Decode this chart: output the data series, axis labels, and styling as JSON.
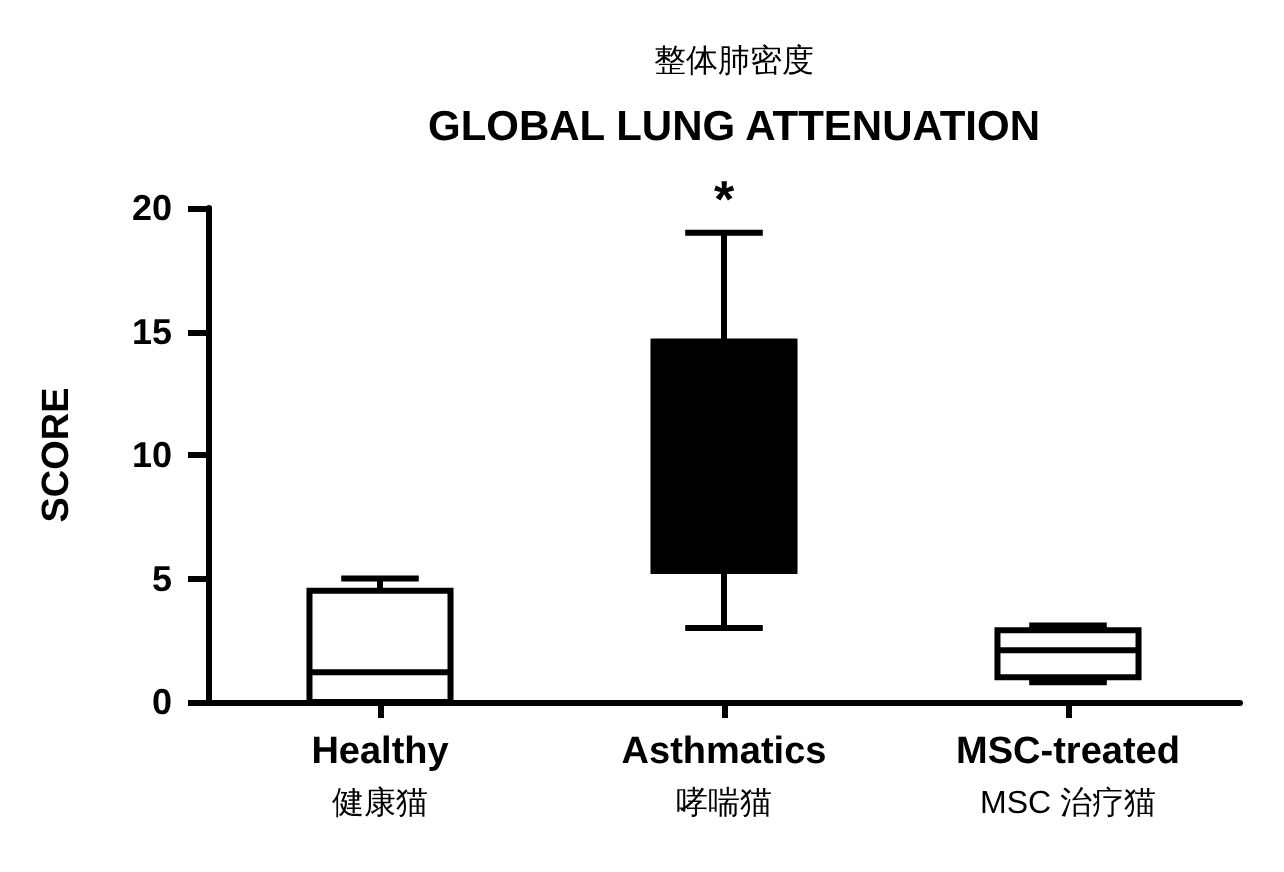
{
  "chart_data": {
    "type": "box",
    "title": "GLOBAL LUNG ATTENUATION",
    "subtitle": "整体肺密度",
    "ylabel": "SCORE",
    "categories": [
      "Healthy\n健康猫",
      "Asthmatics\n哮喘猫",
      "MSC-treated\nMSC 治疗猫"
    ],
    "boxes": [
      {
        "low": 0,
        "q1": 0,
        "median": 1.2,
        "q3": 4.5,
        "high": 5
      },
      {
        "low": 3,
        "q1": 5.3,
        "median": null,
        "q3": 14.6,
        "high": 19
      },
      {
        "low": 0.8,
        "q1": 1.0,
        "median": 2.1,
        "q3": 2.9,
        "high": 3.1
      }
    ],
    "colors": [
      "#ffffff",
      "#000000",
      "#ffffff"
    ],
    "ylim": [
      0,
      20
    ],
    "yticks": [
      0,
      5,
      10,
      15,
      20
    ],
    "grid": false,
    "legend": false,
    "annotations": [
      {
        "text": "*",
        "x": "Asthmatics\n哮喘猫",
        "y": 19
      }
    ]
  }
}
